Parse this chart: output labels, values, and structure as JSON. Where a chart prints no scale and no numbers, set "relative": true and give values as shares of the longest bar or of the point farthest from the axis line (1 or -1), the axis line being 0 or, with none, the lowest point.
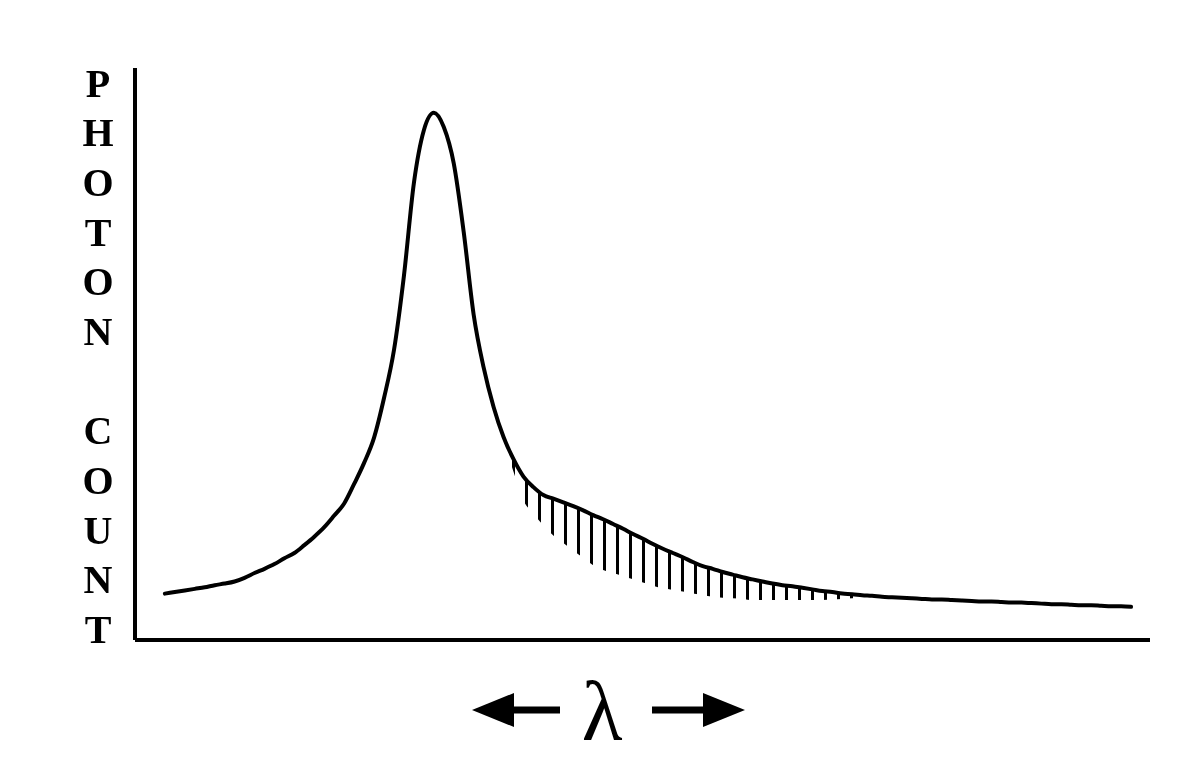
{
  "chart_data": {
    "type": "line",
    "ylabel": "PHOTON COUNT",
    "xlabel": "λ",
    "relative": true,
    "categories": [
      null,
      null,
      null,
      null,
      null,
      null,
      null,
      null,
      null,
      null,
      null,
      null,
      null,
      null,
      null,
      null,
      null,
      null,
      null,
      null,
      null,
      null,
      null,
      null,
      null,
      null,
      null,
      null,
      null,
      null,
      null,
      null,
      null,
      null,
      null,
      null,
      null,
      null,
      null,
      null,
      null,
      null,
      null,
      null,
      null,
      null,
      null,
      null,
      null,
      null,
      null,
      null,
      null,
      null,
      null,
      null,
      null,
      null,
      null,
      null,
      null,
      null,
      null,
      null,
      null,
      null,
      null,
      null,
      null,
      null,
      null,
      null,
      null,
      null,
      null,
      null,
      null,
      null,
      null,
      null,
      null,
      null,
      null,
      null,
      null,
      null,
      null,
      null,
      null,
      null,
      null,
      null,
      null,
      null,
      null,
      null,
      null,
      null
    ],
    "series": [
      {
        "color": "#000000",
        "values": [
          0.088,
          0.091,
          0.094,
          0.097,
          0.1,
          0.104,
          0.107,
          0.111,
          0.118,
          0.127,
          0.135,
          0.144,
          0.155,
          0.165,
          0.18,
          0.196,
          0.214,
          0.236,
          0.259,
          0.296,
          0.336,
          0.384,
          0.459,
          0.55,
          0.691,
          0.867,
          0.967,
          1,
          0.973,
          0.904,
          0.774,
          0.617,
          0.517,
          0.442,
          0.385,
          0.343,
          0.31,
          0.29,
          0.275,
          0.268,
          0.261,
          0.254,
          0.246,
          0.237,
          0.229,
          0.22,
          0.211,
          0.201,
          0.192,
          0.182,
          0.173,
          0.165,
          0.157,
          0.148,
          0.14,
          0.135,
          0.129,
          0.124,
          0.119,
          0.115,
          0.111,
          0.107,
          0.104,
          0.102,
          0.099,
          0.096,
          0.093,
          0.091,
          0.088,
          0.087,
          0.085,
          0.084,
          0.082,
          0.081,
          0.08,
          0.079,
          0.078,
          0.077,
          0.077,
          0.076,
          0.075,
          0.074,
          0.073,
          0.073,
          0.072,
          0.071,
          0.071,
          0.07,
          0.069,
          0.068,
          0.068,
          0.067,
          0.066,
          0.066,
          0.065,
          0.064,
          0.064,
          0.063
        ],
        "lower": [
          null,
          null,
          null,
          null,
          null,
          null,
          null,
          null,
          null,
          null,
          null,
          null,
          null,
          null,
          null,
          null,
          null,
          null,
          null,
          null,
          null,
          null,
          null,
          null,
          null,
          null,
          null,
          null,
          null,
          null,
          null,
          null,
          null,
          0.43,
          0.378,
          0.319,
          0.264,
          0.24,
          0.217,
          0.198,
          0.184,
          0.17,
          0.156,
          0.142,
          0.133,
          0.127,
          0.121,
          0.115,
          0.109,
          0.103,
          0.098,
          0.095,
          0.092,
          0.088,
          0.085,
          0.082,
          0.08,
          0.079,
          0.078,
          0.076,
          0.076,
          0.076,
          0.076,
          0.076,
          0.076,
          0.076,
          0.076,
          0.077,
          0.078,
          0.079,
          0.08,
          null,
          null,
          null,
          null,
          null,
          null,
          null,
          null,
          null,
          null,
          null,
          null,
          null,
          null,
          null,
          null,
          null,
          null,
          null,
          null,
          null,
          null,
          null,
          null,
          null,
          null,
          null
        ],
        "upper": [
          null,
          null,
          null,
          null,
          null,
          null,
          null,
          null,
          null,
          null,
          null,
          null,
          null,
          null,
          null,
          null,
          null,
          null,
          null,
          null,
          null,
          null,
          null,
          null,
          null,
          null,
          null,
          null,
          null,
          null,
          null,
          null,
          null,
          0.442,
          0.385,
          0.343,
          0.31,
          0.29,
          0.275,
          0.268,
          0.261,
          0.254,
          0.246,
          0.237,
          0.229,
          0.22,
          0.211,
          0.201,
          0.192,
          0.182,
          0.173,
          0.165,
          0.157,
          0.148,
          0.14,
          0.135,
          0.129,
          0.124,
          0.119,
          0.115,
          0.111,
          0.107,
          0.104,
          0.102,
          0.099,
          0.096,
          0.093,
          0.091,
          0.088,
          0.087,
          0.085,
          null,
          null,
          null,
          null,
          null,
          null,
          null,
          null,
          null,
          null,
          null,
          null,
          null,
          null,
          null,
          null,
          null,
          null,
          null,
          null,
          null,
          null,
          null,
          null,
          null,
          null,
          null
        ]
      }
    ]
  }
}
